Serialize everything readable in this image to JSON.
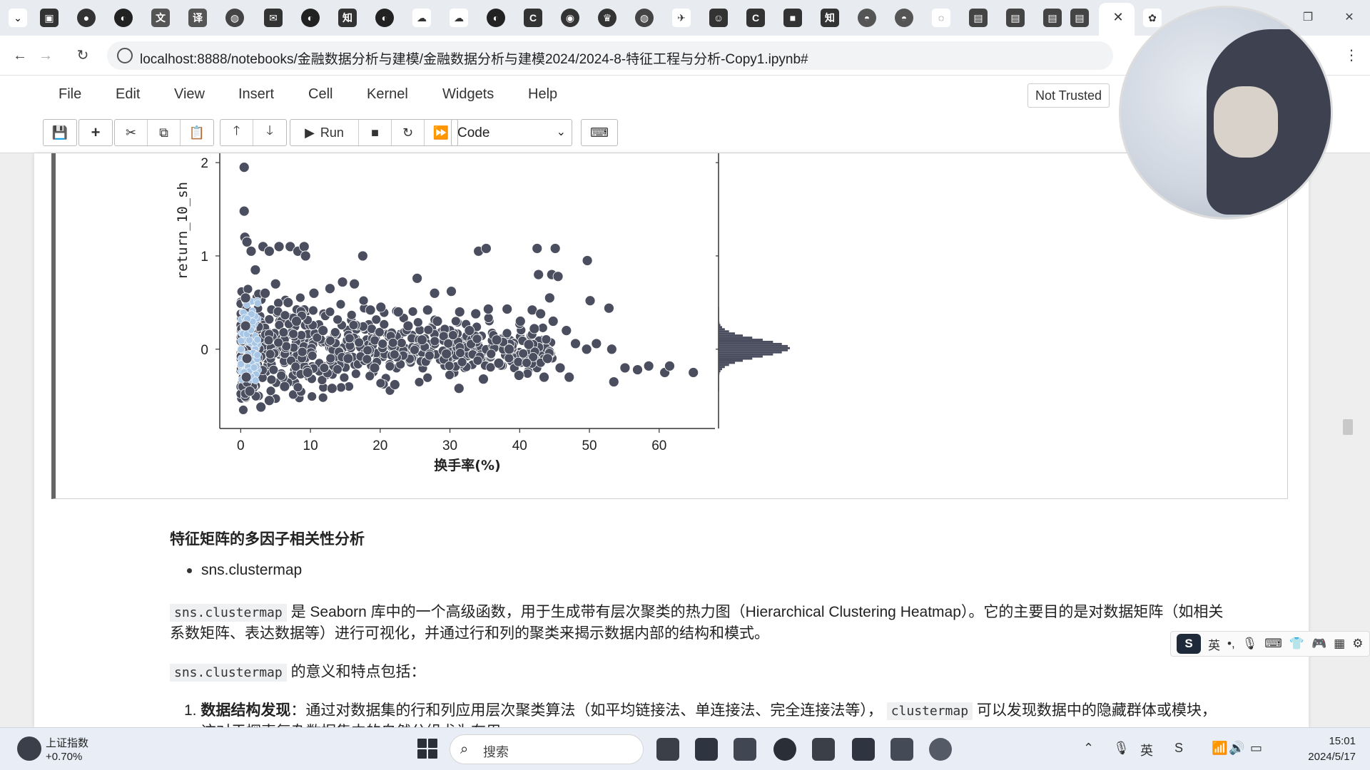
{
  "browser": {
    "url": "localhost:8888/notebooks/金融数据分析与建模/金融数据分析与建模2024/2024-8-特征工程与分析-Copy1.ipynb#",
    "tab_close": "✕"
  },
  "jupyter": {
    "menu": [
      "File",
      "Edit",
      "View",
      "Insert",
      "Cell",
      "Kernel",
      "Widgets",
      "Help"
    ],
    "trust_status": "Not Trusted",
    "toolbar": {
      "run_label": "Run",
      "cell_type": "Code"
    }
  },
  "chart_data": {
    "type": "scatter",
    "xlabel": "换手率(%)",
    "ylabel": "return_10_sh",
    "x_ticks": [
      0,
      10,
      20,
      30,
      40,
      50,
      60
    ],
    "y_ticks": [
      0,
      1,
      2
    ],
    "xlim": [
      -3,
      68
    ],
    "ylim": [
      -0.85,
      2.1
    ],
    "marginal_y": "histogram",
    "points": [
      [
        0.5,
        1.95
      ],
      [
        0.5,
        1.48
      ],
      [
        0.6,
        1.2
      ],
      [
        0.9,
        1.15
      ],
      [
        1.5,
        1.05
      ],
      [
        3.2,
        1.1
      ],
      [
        4.1,
        1.05
      ],
      [
        5.5,
        1.1
      ],
      [
        7.1,
        1.1
      ],
      [
        8.2,
        1.05
      ],
      [
        9.1,
        1.1
      ],
      [
        9.3,
        1.0
      ],
      [
        17.5,
        1.0
      ],
      [
        25.3,
        0.76
      ],
      [
        27.8,
        0.6
      ],
      [
        30.2,
        0.62
      ],
      [
        34.1,
        1.05
      ],
      [
        35.2,
        1.08
      ],
      [
        42.5,
        1.08
      ],
      [
        45.1,
        1.08
      ],
      [
        42.7,
        0.8
      ],
      [
        44.6,
        0.8
      ],
      [
        45.5,
        0.78
      ],
      [
        49.7,
        0.95
      ],
      [
        44.3,
        0.55
      ],
      [
        50.1,
        0.52
      ],
      [
        52.8,
        0.44
      ],
      [
        35.5,
        0.43
      ],
      [
        38.2,
        0.43
      ],
      [
        41.8,
        0.42
      ],
      [
        26.8,
        0.42
      ],
      [
        31.4,
        0.4
      ],
      [
        33.7,
        0.38
      ],
      [
        43.0,
        0.38
      ],
      [
        44.8,
        0.3
      ],
      [
        40.1,
        0.3
      ],
      [
        42.1,
        0.22
      ],
      [
        46.7,
        0.2
      ],
      [
        48.0,
        0.06
      ],
      [
        49.6,
        0.0
      ],
      [
        51.0,
        0.06
      ],
      [
        53.2,
        0.0
      ],
      [
        55.1,
        -0.2
      ],
      [
        56.9,
        -0.22
      ],
      [
        58.5,
        -0.18
      ],
      [
        60.8,
        -0.25
      ],
      [
        61.5,
        -0.18
      ],
      [
        64.9,
        -0.25
      ],
      [
        53.5,
        -0.35
      ],
      [
        47.1,
        -0.3
      ],
      [
        39.9,
        -0.28
      ],
      [
        34.8,
        -0.32
      ],
      [
        31.3,
        -0.42
      ],
      [
        22.1,
        -0.38
      ],
      [
        4.1,
        -0.55
      ],
      [
        2.9,
        -0.62
      ],
      [
        6.3,
        -0.4
      ],
      [
        13.1,
        -0.42
      ],
      [
        1.3,
        -0.45
      ],
      [
        0.8,
        -0.3
      ],
      [
        0.7,
        0.55
      ],
      [
        0.7,
        0.25
      ],
      [
        0.9,
        -0.1
      ],
      [
        2.1,
        0.85
      ],
      [
        3.5,
        0.6
      ],
      [
        5.0,
        0.7
      ],
      [
        6.8,
        0.5
      ],
      [
        8.0,
        0.3
      ],
      [
        10.5,
        0.6
      ],
      [
        12.8,
        0.65
      ],
      [
        14.6,
        0.72
      ],
      [
        16.3,
        0.7
      ],
      [
        18.6,
        0.42
      ],
      [
        20.1,
        0.45
      ],
      [
        22.6,
        0.4
      ],
      [
        24.0,
        0.25
      ],
      [
        28.2,
        0.3
      ],
      [
        32.8,
        0.2
      ],
      [
        36.7,
        0.1
      ],
      [
        38.5,
        0.0
      ],
      [
        41.3,
        0.05
      ],
      [
        44.0,
        -0.1
      ],
      [
        45.8,
        -0.2
      ],
      [
        43.5,
        -0.3
      ],
      [
        37.0,
        -0.15
      ],
      [
        29.5,
        -0.05
      ],
      [
        26.0,
        0.1
      ],
      [
        19.2,
        -0.2
      ],
      [
        15.4,
        -0.1
      ],
      [
        11.8,
        0.2
      ],
      [
        9.6,
        -0.25
      ]
    ],
    "dense_cluster": {
      "x_range": [
        0,
        45
      ],
      "y_center": 0.0,
      "y_spread": 0.3
    }
  },
  "markdown": {
    "heading": "特征矩阵的多因子相关性分析",
    "bullet_1": "sns.clustermap",
    "p1_code": "sns.clustermap",
    "p1_text_1": "是 Seaborn 库中的一个高级函数，用于生成带有层次聚类的热力图（Hierarchical Clustering Heatmap）。它的主要目的是对数据矩阵（如相关",
    "p1_text_2": "系数矩阵、表达数据等）进行可视化，并通过行和列的聚类来揭示数据内部的结构和模式。",
    "p2_code": "sns.clustermap",
    "p2_text": "的意义和特点包括：",
    "li1_num": "1.",
    "li1_bold": "数据结构发现",
    "li1_text": "：通过对数据集的行和列应用层次聚类算法（如平均链接法、单连接法、完全连接法等），",
    "li1_code": "clustermap",
    "li1_text_2": "可以发现数据中的隐藏群体或模块，",
    "li1_text_3": "这对于探索复杂数据集中的自然分组尤为有用。"
  },
  "ime": {
    "lang": "英",
    "punct": "•,"
  },
  "taskbar": {
    "stock_name": "上证指数",
    "stock_change": "+0.70%",
    "search_placeholder": "搜索",
    "time": "15:01",
    "date": "2024/5/17",
    "tray_lang": "英"
  },
  "colors": {
    "point_fill": "#4a4e5e",
    "point_edge": "#ffffff",
    "cluster_highlight": "#a7c6e6"
  }
}
